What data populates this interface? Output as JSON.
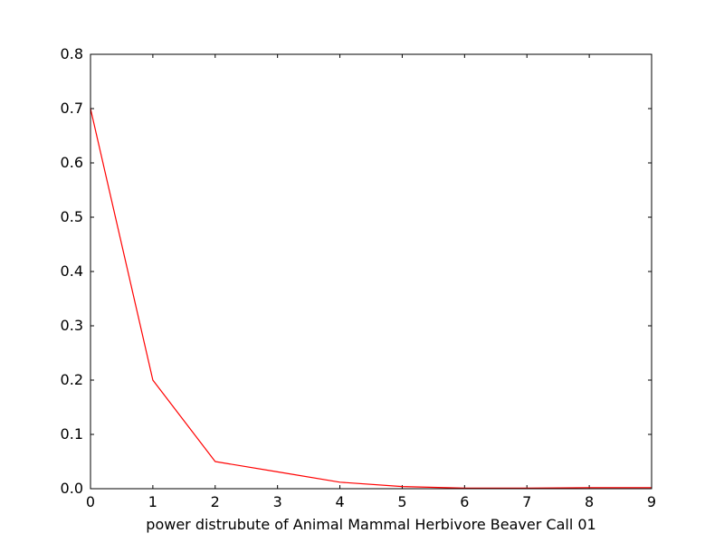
{
  "chart_data": {
    "type": "line",
    "title": "",
    "xlabel": "power distrubute of Animal Mammal Herbivore Beaver Call 01",
    "ylabel": "",
    "xlim": [
      0,
      9
    ],
    "ylim": [
      0.0,
      0.8
    ],
    "x_ticks": [
      "0",
      "1",
      "2",
      "3",
      "4",
      "5",
      "6",
      "7",
      "8",
      "9"
    ],
    "y_ticks": [
      "0.0",
      "0.1",
      "0.2",
      "0.3",
      "0.4",
      "0.5",
      "0.6",
      "0.7",
      "0.8"
    ],
    "grid": false,
    "legend": "none",
    "series": [
      {
        "color": "#ff0000",
        "x": [
          0,
          1,
          2,
          3,
          4,
          5,
          6,
          7,
          8,
          9
        ],
        "y": [
          0.7,
          0.2,
          0.05,
          0.031,
          0.012,
          0.004,
          0.001,
          0.001,
          0.002,
          0.002
        ]
      }
    ]
  }
}
